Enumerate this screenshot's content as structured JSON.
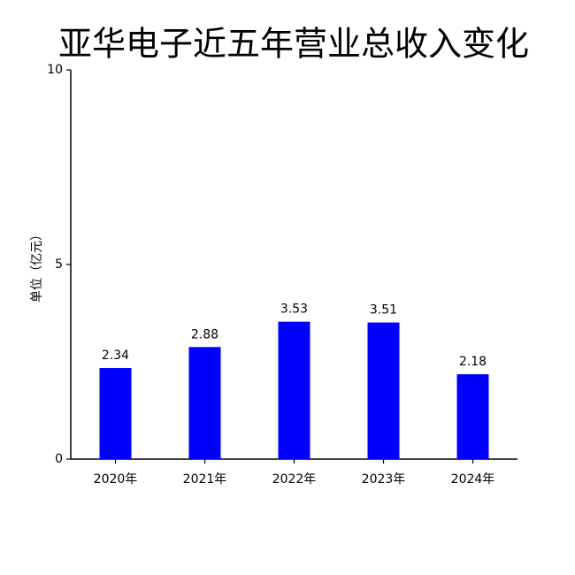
{
  "chart_data": {
    "type": "bar",
    "title": "亚华电子近五年营业总收入变化",
    "y_label": "单位（亿元）",
    "categories": [
      "2020年",
      "2021年",
      "2022年",
      "2023年",
      "2024年"
    ],
    "values": [
      2.34,
      2.88,
      3.53,
      3.51,
      2.18
    ],
    "color": "#0000ff",
    "ylim": [
      0,
      10
    ],
    "yticks": [
      0,
      5,
      10
    ],
    "grid": false
  }
}
